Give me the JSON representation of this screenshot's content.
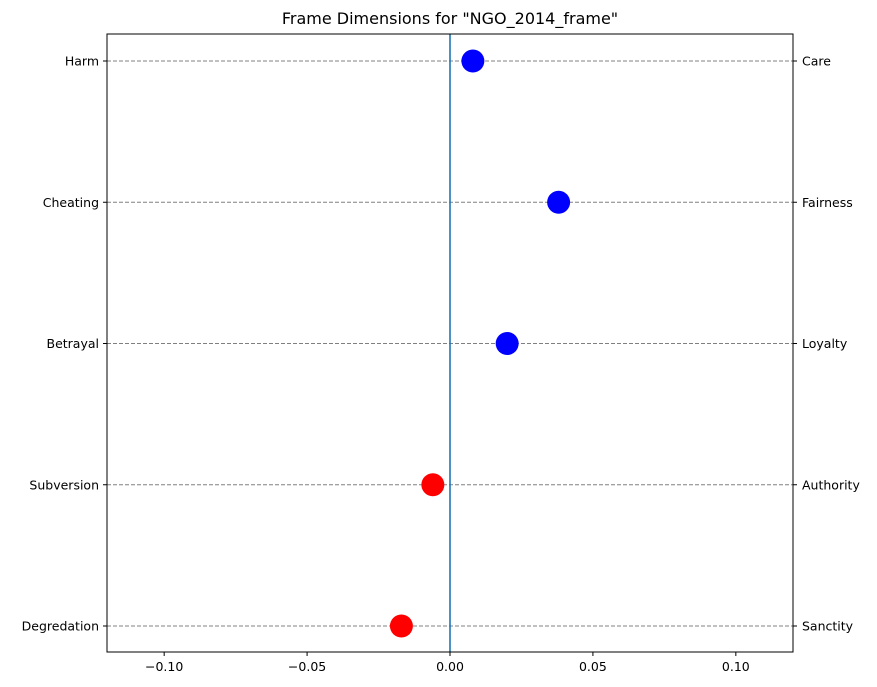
{
  "chart_data": {
    "type": "scatter",
    "title": "Frame Dimensions for \"NGO_2014_frame\"",
    "xlabel": "",
    "ylabel": "",
    "xlim": [
      -0.12,
      0.12
    ],
    "x_ticks": [
      -0.1,
      -0.05,
      0.0,
      0.05,
      0.1
    ],
    "x_tick_labels": [
      "−0.10",
      "−0.05",
      "0.00",
      "0.05",
      "0.10"
    ],
    "grid": "horizontal dashed lines at each category",
    "reference_line_x": 0.0,
    "categories_left": [
      "Harm",
      "Cheating",
      "Betrayal",
      "Subversion",
      "Degredation"
    ],
    "categories_right": [
      "Care",
      "Fairness",
      "Loyalty",
      "Authority",
      "Sanctity"
    ],
    "values": [
      0.008,
      0.038,
      0.02,
      -0.006,
      -0.017
    ],
    "colors": {
      "positive": "#0000ff",
      "negative": "#ff0000",
      "reference_line": "#1f77b4",
      "grid": "#808080"
    }
  }
}
